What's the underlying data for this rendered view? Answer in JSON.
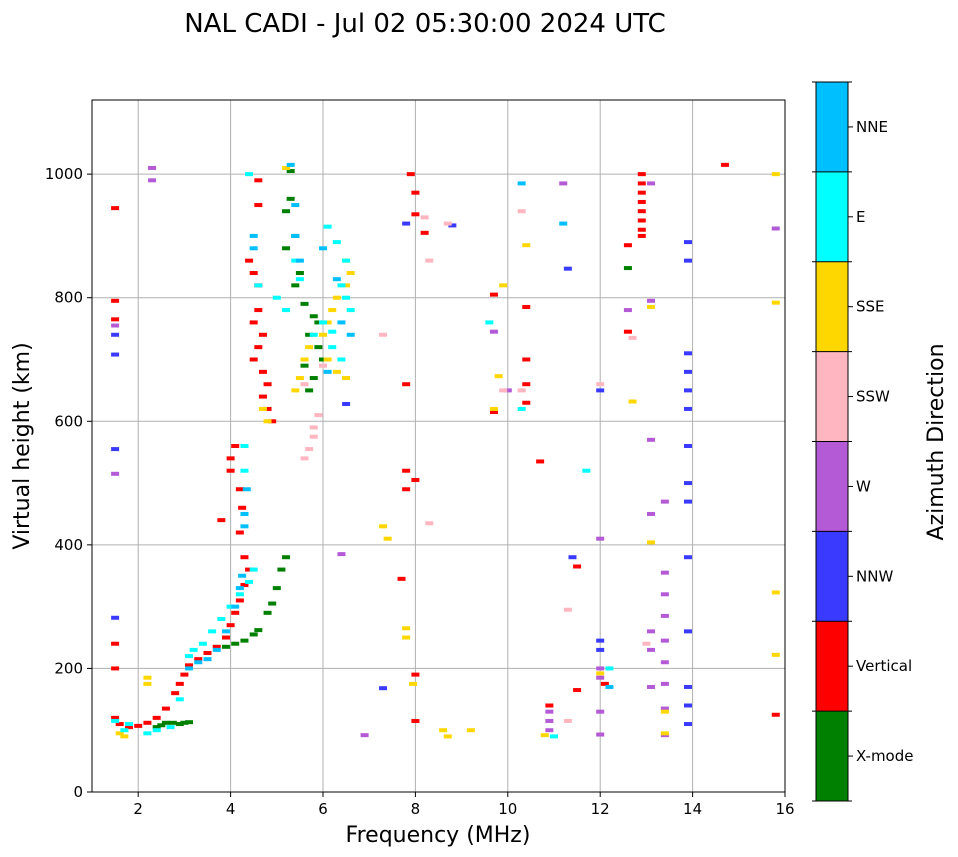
{
  "chart_data": {
    "type": "scatter",
    "title": "NAL CADI - Jul 02 05:30:00 2024 UTC",
    "xlabel": "Frequency (MHz)",
    "ylabel": "Virtual height (km)",
    "xlim": [
      1,
      16
    ],
    "ylim": [
      0,
      1120
    ],
    "xticks": [
      "2",
      "4",
      "6",
      "8",
      "10",
      "12",
      "14",
      "16"
    ],
    "yticks": [
      "0",
      "200",
      "400",
      "600",
      "800",
      "1000"
    ],
    "grid": true,
    "colorbar": {
      "label": "Azimuth Direction",
      "categories": [
        "X-mode",
        "Vertical",
        "NNW",
        "W",
        "SSW",
        "SSE",
        "E",
        "NNE"
      ],
      "colors": [
        "#008000",
        "#ff0000",
        "#3a3aff",
        "#b45ad6",
        "#ffb6c1",
        "#ffd700",
        "#00ffff",
        "#00bfff"
      ]
    },
    "series": [
      {
        "name": "X-mode",
        "points": [
          [
            2.4,
            105
          ],
          [
            2.5,
            108
          ],
          [
            2.6,
            112
          ],
          [
            2.75,
            112
          ],
          [
            2.9,
            110
          ],
          [
            3.0,
            112
          ],
          [
            3.1,
            113
          ],
          [
            3.9,
            235
          ],
          [
            4.1,
            240
          ],
          [
            4.3,
            245
          ],
          [
            4.5,
            255
          ],
          [
            4.6,
            262
          ],
          [
            4.8,
            290
          ],
          [
            4.9,
            305
          ],
          [
            5.0,
            330
          ],
          [
            5.1,
            360
          ],
          [
            5.2,
            380
          ],
          [
            5.3,
            1005
          ],
          [
            5.3,
            960
          ],
          [
            5.2,
            940
          ],
          [
            5.4,
            900
          ],
          [
            5.2,
            880
          ],
          [
            5.5,
            840
          ],
          [
            5.4,
            820
          ],
          [
            5.6,
            790
          ],
          [
            5.8,
            770
          ],
          [
            5.9,
            760
          ],
          [
            5.7,
            740
          ],
          [
            5.9,
            720
          ],
          [
            6.0,
            700
          ],
          [
            5.6,
            690
          ],
          [
            5.8,
            670
          ],
          [
            5.7,
            650
          ],
          [
            12.6,
            848
          ]
        ]
      },
      {
        "name": "Vertical",
        "points": [
          [
            1.5,
            945
          ],
          [
            1.5,
            795
          ],
          [
            1.5,
            765
          ],
          [
            1.5,
            240
          ],
          [
            1.5,
            200
          ],
          [
            1.5,
            120
          ],
          [
            1.6,
            110
          ],
          [
            1.8,
            105
          ],
          [
            2.0,
            107
          ],
          [
            2.2,
            112
          ],
          [
            2.4,
            120
          ],
          [
            2.6,
            135
          ],
          [
            2.8,
            160
          ],
          [
            2.9,
            175
          ],
          [
            3.0,
            190
          ],
          [
            3.1,
            205
          ],
          [
            3.3,
            215
          ],
          [
            3.5,
            225
          ],
          [
            3.7,
            235
          ],
          [
            3.9,
            250
          ],
          [
            4.0,
            270
          ],
          [
            4.1,
            290
          ],
          [
            4.2,
            310
          ],
          [
            4.3,
            335
          ],
          [
            4.4,
            360
          ],
          [
            4.3,
            380
          ],
          [
            4.2,
            420
          ],
          [
            4.25,
            460
          ],
          [
            4.2,
            490
          ],
          [
            4.0,
            520
          ],
          [
            4.0,
            540
          ],
          [
            4.1,
            560
          ],
          [
            3.8,
            440
          ],
          [
            4.5,
            840
          ],
          [
            4.6,
            820
          ],
          [
            4.6,
            780
          ],
          [
            4.5,
            760
          ],
          [
            4.7,
            740
          ],
          [
            4.6,
            720
          ],
          [
            4.5,
            700
          ],
          [
            4.7,
            680
          ],
          [
            4.8,
            660
          ],
          [
            4.7,
            640
          ],
          [
            4.8,
            620
          ],
          [
            4.9,
            600
          ],
          [
            4.4,
            860
          ],
          [
            4.6,
            950
          ],
          [
            4.6,
            990
          ],
          [
            7.7,
            345
          ],
          [
            7.8,
            520
          ],
          [
            7.8,
            490
          ],
          [
            7.8,
            660
          ],
          [
            8.0,
            505
          ],
          [
            8.0,
            190
          ],
          [
            8.0,
            115
          ],
          [
            8.2,
            905
          ],
          [
            7.9,
            1000
          ],
          [
            8.0,
            970
          ],
          [
            8.0,
            935
          ],
          [
            9.7,
            805
          ],
          [
            9.7,
            615
          ],
          [
            10.4,
            785
          ],
          [
            10.4,
            700
          ],
          [
            10.4,
            660
          ],
          [
            10.4,
            630
          ],
          [
            10.7,
            535
          ],
          [
            10.9,
            140
          ],
          [
            11.5,
            165
          ],
          [
            11.5,
            365
          ],
          [
            12.1,
            175
          ],
          [
            12.6,
            885
          ],
          [
            12.6,
            745
          ],
          [
            12.9,
            1000
          ],
          [
            12.9,
            985
          ],
          [
            12.9,
            970
          ],
          [
            12.9,
            955
          ],
          [
            12.9,
            940
          ],
          [
            12.9,
            925
          ],
          [
            12.9,
            910
          ],
          [
            12.9,
            900
          ],
          [
            14.7,
            1015
          ],
          [
            15.8,
            125
          ]
        ]
      },
      {
        "name": "NNW",
        "points": [
          [
            1.5,
            555
          ],
          [
            1.5,
            282
          ],
          [
            1.5,
            708
          ],
          [
            1.5,
            740
          ],
          [
            7.3,
            168
          ],
          [
            8.8,
            917
          ],
          [
            11.3,
            847
          ],
          [
            11.4,
            380
          ],
          [
            12.0,
            245
          ],
          [
            12.0,
            230
          ],
          [
            12.0,
            650
          ],
          [
            13.9,
            890
          ],
          [
            13.9,
            860
          ],
          [
            13.9,
            710
          ],
          [
            13.9,
            680
          ],
          [
            13.9,
            650
          ],
          [
            13.9,
            620
          ],
          [
            13.9,
            560
          ],
          [
            13.9,
            500
          ],
          [
            13.9,
            470
          ],
          [
            13.9,
            380
          ],
          [
            13.9,
            260
          ],
          [
            13.9,
            170
          ],
          [
            13.9,
            140
          ],
          [
            13.9,
            110
          ],
          [
            6.5,
            628
          ],
          [
            7.8,
            920
          ]
        ]
      },
      {
        "name": "W",
        "points": [
          [
            2.3,
            1010
          ],
          [
            2.3,
            990
          ],
          [
            1.5,
            515
          ],
          [
            1.5,
            755
          ],
          [
            6.4,
            385
          ],
          [
            6.9,
            92
          ],
          [
            10.0,
            650
          ],
          [
            10.9,
            130
          ],
          [
            10.9,
            115
          ],
          [
            10.9,
            100
          ],
          [
            11.2,
            985
          ],
          [
            12.0,
            410
          ],
          [
            12.0,
            200
          ],
          [
            12.0,
            185
          ],
          [
            12.0,
            130
          ],
          [
            12.0,
            93
          ],
          [
            12.6,
            780
          ],
          [
            13.1,
            985
          ],
          [
            13.1,
            795
          ],
          [
            13.1,
            570
          ],
          [
            13.1,
            450
          ],
          [
            13.1,
            260
          ],
          [
            13.1,
            230
          ],
          [
            13.1,
            170
          ],
          [
            13.4,
            470
          ],
          [
            13.4,
            355
          ],
          [
            13.4,
            320
          ],
          [
            13.4,
            285
          ],
          [
            13.4,
            245
          ],
          [
            13.4,
            210
          ],
          [
            13.4,
            175
          ],
          [
            13.4,
            135
          ],
          [
            13.4,
            92
          ],
          [
            15.8,
            912
          ],
          [
            9.7,
            745
          ]
        ]
      },
      {
        "name": "SSW",
        "points": [
          [
            5.6,
            540
          ],
          [
            5.7,
            555
          ],
          [
            5.8,
            575
          ],
          [
            5.8,
            590
          ],
          [
            5.9,
            610
          ],
          [
            8.2,
            930
          ],
          [
            8.3,
            860
          ],
          [
            8.3,
            435
          ],
          [
            8.7,
            920
          ],
          [
            9.9,
            650
          ],
          [
            10.3,
            940
          ],
          [
            10.3,
            650
          ],
          [
            11.3,
            295
          ],
          [
            11.3,
            115
          ],
          [
            12.0,
            660
          ],
          [
            12.7,
            735
          ],
          [
            13.0,
            240
          ],
          [
            7.3,
            740
          ],
          [
            5.6,
            660
          ],
          [
            6.0,
            690
          ]
        ]
      },
      {
        "name": "SSE",
        "points": [
          [
            1.6,
            95
          ],
          [
            1.7,
            90
          ],
          [
            2.2,
            185
          ],
          [
            2.2,
            175
          ],
          [
            4.7,
            620
          ],
          [
            4.8,
            600
          ],
          [
            5.2,
            1010
          ],
          [
            5.4,
            650
          ],
          [
            5.5,
            670
          ],
          [
            5.6,
            700
          ],
          [
            5.7,
            720
          ],
          [
            6.0,
            740
          ],
          [
            6.1,
            760
          ],
          [
            6.2,
            780
          ],
          [
            6.3,
            800
          ],
          [
            6.5,
            820
          ],
          [
            6.6,
            840
          ],
          [
            6.5,
            860
          ],
          [
            6.3,
            680
          ],
          [
            6.5,
            670
          ],
          [
            6.1,
            700
          ],
          [
            7.3,
            430
          ],
          [
            7.4,
            410
          ],
          [
            7.8,
            265
          ],
          [
            7.8,
            250
          ],
          [
            7.95,
            175
          ],
          [
            8.6,
            100
          ],
          [
            8.7,
            90
          ],
          [
            9.2,
            100
          ],
          [
            9.9,
            820
          ],
          [
            9.8,
            673
          ],
          [
            9.7,
            620
          ],
          [
            10.4,
            885
          ],
          [
            10.8,
            92
          ],
          [
            12.0,
            192
          ],
          [
            12.7,
            632
          ],
          [
            13.1,
            404
          ],
          [
            13.1,
            785
          ],
          [
            13.4,
            130
          ],
          [
            13.4,
            95
          ],
          [
            15.8,
            1000
          ],
          [
            15.8,
            792
          ],
          [
            15.8,
            323
          ],
          [
            15.8,
            222
          ]
        ]
      },
      {
        "name": "E",
        "points": [
          [
            1.5,
            115
          ],
          [
            1.7,
            100
          ],
          [
            1.8,
            110
          ],
          [
            2.2,
            95
          ],
          [
            2.4,
            100
          ],
          [
            2.7,
            105
          ],
          [
            2.9,
            150
          ],
          [
            3.1,
            220
          ],
          [
            3.2,
            230
          ],
          [
            3.4,
            240
          ],
          [
            3.6,
            260
          ],
          [
            3.8,
            280
          ],
          [
            4.0,
            300
          ],
          [
            4.2,
            320
          ],
          [
            4.4,
            340
          ],
          [
            4.5,
            360
          ],
          [
            4.3,
            520
          ],
          [
            4.3,
            560
          ],
          [
            4.6,
            820
          ],
          [
            5.0,
            800
          ],
          [
            5.2,
            780
          ],
          [
            5.4,
            860
          ],
          [
            5.5,
            830
          ],
          [
            6.0,
            760
          ],
          [
            6.2,
            745
          ],
          [
            6.4,
            820
          ],
          [
            6.5,
            800
          ],
          [
            6.6,
            780
          ],
          [
            6.2,
            720
          ],
          [
            6.4,
            700
          ],
          [
            6.3,
            890
          ],
          [
            6.5,
            860
          ],
          [
            5.8,
            740
          ],
          [
            9.6,
            760
          ],
          [
            10.3,
            620
          ],
          [
            11.0,
            90
          ],
          [
            11.7,
            520
          ],
          [
            12.2,
            200
          ],
          [
            4.4,
            1000
          ],
          [
            6.1,
            915
          ]
        ]
      },
      {
        "name": "NNE",
        "points": [
          [
            3.1,
            200
          ],
          [
            3.3,
            210
          ],
          [
            3.5,
            215
          ],
          [
            3.7,
            230
          ],
          [
            3.9,
            260
          ],
          [
            4.1,
            300
          ],
          [
            4.2,
            330
          ],
          [
            4.25,
            350
          ],
          [
            4.3,
            430
          ],
          [
            4.3,
            450
          ],
          [
            4.35,
            490
          ],
          [
            4.5,
            900
          ],
          [
            4.5,
            880
          ],
          [
            5.3,
            1015
          ],
          [
            5.4,
            950
          ],
          [
            5.4,
            900
          ],
          [
            5.5,
            860
          ],
          [
            6.0,
            880
          ],
          [
            6.3,
            830
          ],
          [
            6.4,
            760
          ],
          [
            6.6,
            740
          ],
          [
            6.1,
            680
          ],
          [
            10.3,
            985
          ],
          [
            11.2,
            920
          ],
          [
            12.2,
            170
          ]
        ]
      }
    ]
  }
}
